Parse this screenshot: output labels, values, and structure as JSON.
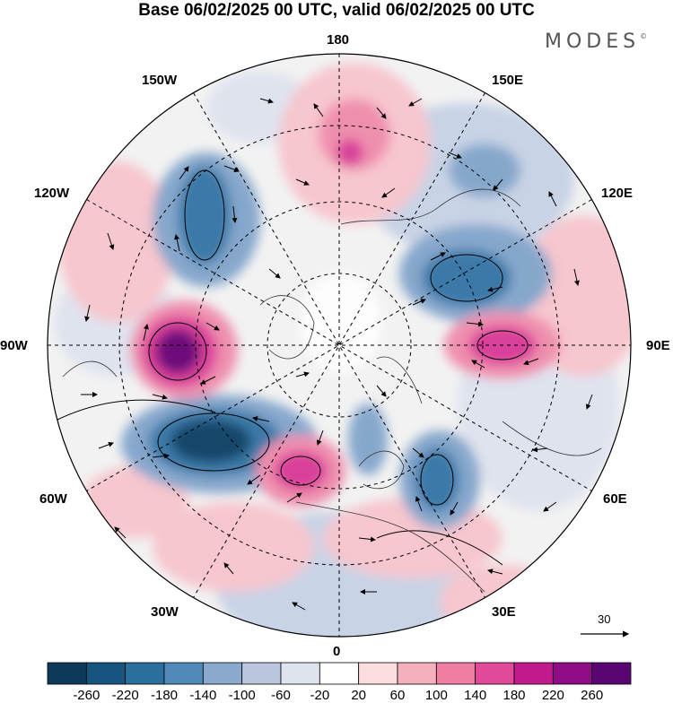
{
  "title": "Base 06/02/2025 00 UTC, valid 06/02/2025 00 UTC",
  "brand": "MODES",
  "brand_mark": "©",
  "longitude_labels": {
    "top": "180",
    "bottom": "0",
    "left": "90W",
    "right": "90E",
    "upper_left_1": "150W",
    "upper_left_2": "120W",
    "upper_right_1": "150E",
    "upper_right_2": "120E",
    "lower_left_1": "60W",
    "lower_left_2": "30W",
    "lower_right_1": "60E",
    "lower_right_2": "30E"
  },
  "vector_reference": {
    "value": "30"
  },
  "colorbar": {
    "labels": [
      "-260",
      "-220",
      "-180",
      "-140",
      "-100",
      "-60",
      "-20",
      "20",
      "60",
      "100",
      "140",
      "180",
      "220",
      "260"
    ],
    "colors": [
      "#0d3a5a",
      "#16557f",
      "#2a6f9e",
      "#5189b8",
      "#8aa9cd",
      "#bac6de",
      "#dfe3ee",
      "#ffffff",
      "#fbdcdf",
      "#f4b0bb",
      "#ee7fa2",
      "#e04a98",
      "#c01a8d",
      "#900c86",
      "#5a0672"
    ]
  },
  "map": {
    "projection": "north-polar-stereographic",
    "graticule": "dashed",
    "field_colors": {
      "neutral": "#f2f2f2",
      "blue_light": "#c8d3e6",
      "blue_mid": "#86a7cc",
      "blue_dark": "#3b79a8",
      "blue_deep": "#17466a",
      "pink_light": "#f7c6ce",
      "pink_mid": "#ef8fae",
      "pink_dark": "#d9409a",
      "magenta_deep": "#6e0b7a"
    }
  }
}
